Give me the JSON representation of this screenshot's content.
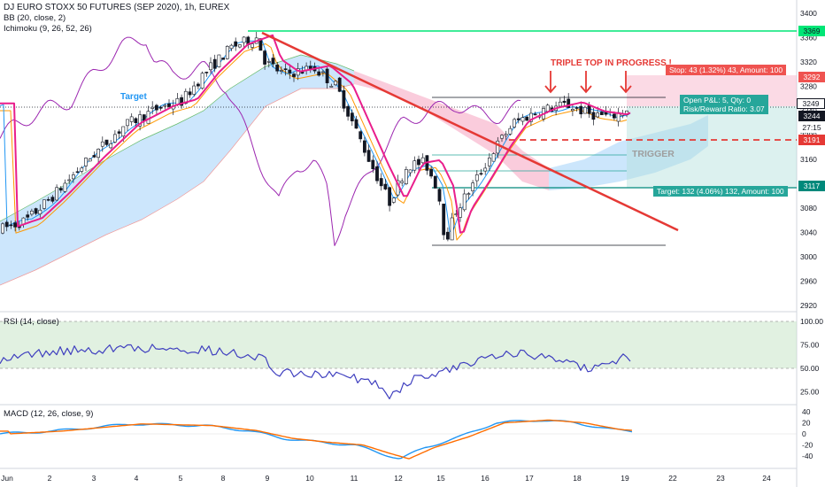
{
  "legend": {
    "symbol": "DJ EURO STOXX 50 FUTURES (SEP 2020), 1h, EUREX",
    "bb": "BB (20, close, 2)",
    "ichimoku": "Ichimoku (9, 26, 52, 26)",
    "rsi": "RSI (14, close)",
    "macd": "MACD (12, 26, close, 9)"
  },
  "price_axis": [
    "3400",
    "3360",
    "3320",
    "3280",
    "3240",
    "3200",
    "3160",
    "3120",
    "3080",
    "3040",
    "3000",
    "2960",
    "2920"
  ],
  "rsi_axis": [
    "100.00",
    "75.00",
    "50.00",
    "25.00"
  ],
  "macd_axis": [
    "40",
    "20",
    "0",
    "-20",
    "-40"
  ],
  "time_axis": [
    "Jun",
    "2",
    "3",
    "4",
    "5",
    "8",
    "9",
    "10",
    "11",
    "12",
    "15",
    "16",
    "17",
    "18",
    "19",
    "22",
    "23",
    "24"
  ],
  "tags": {
    "resistance": "3369",
    "stop_price": "3292",
    "last": "3249",
    "current": "3244",
    "countdown": "27:15",
    "trigger_price": "3191",
    "target_price": "3117"
  },
  "annotations": {
    "triple_top": "TRIPLE TOP IN PROGRESS !",
    "target_left": "Target",
    "trigger": "TRIGGER",
    "stop": "Stop: 43 (1.32%) 43, Amount: 100",
    "open_pnl": "Open P&L: 5, Qty: 0",
    "risk_reward": "Risk/Reward Ratio: 3.07",
    "target_box": "Target: 132 (4.06%) 132, Amount: 100"
  },
  "colors": {
    "candle": "#131722",
    "bb_basis": "#e91e8c",
    "tenkan": "#2196f3",
    "kijun": "#ff9800",
    "chikou": "#9c27b0",
    "cloud_bull": "#bbdefb",
    "cloud_bear": "#f8bbd0",
    "trendline": "#e53935",
    "resistance": "#00e676",
    "rsi": "#3f3fbf",
    "macd": "#2196f3",
    "signal": "#ff6d00"
  }
}
